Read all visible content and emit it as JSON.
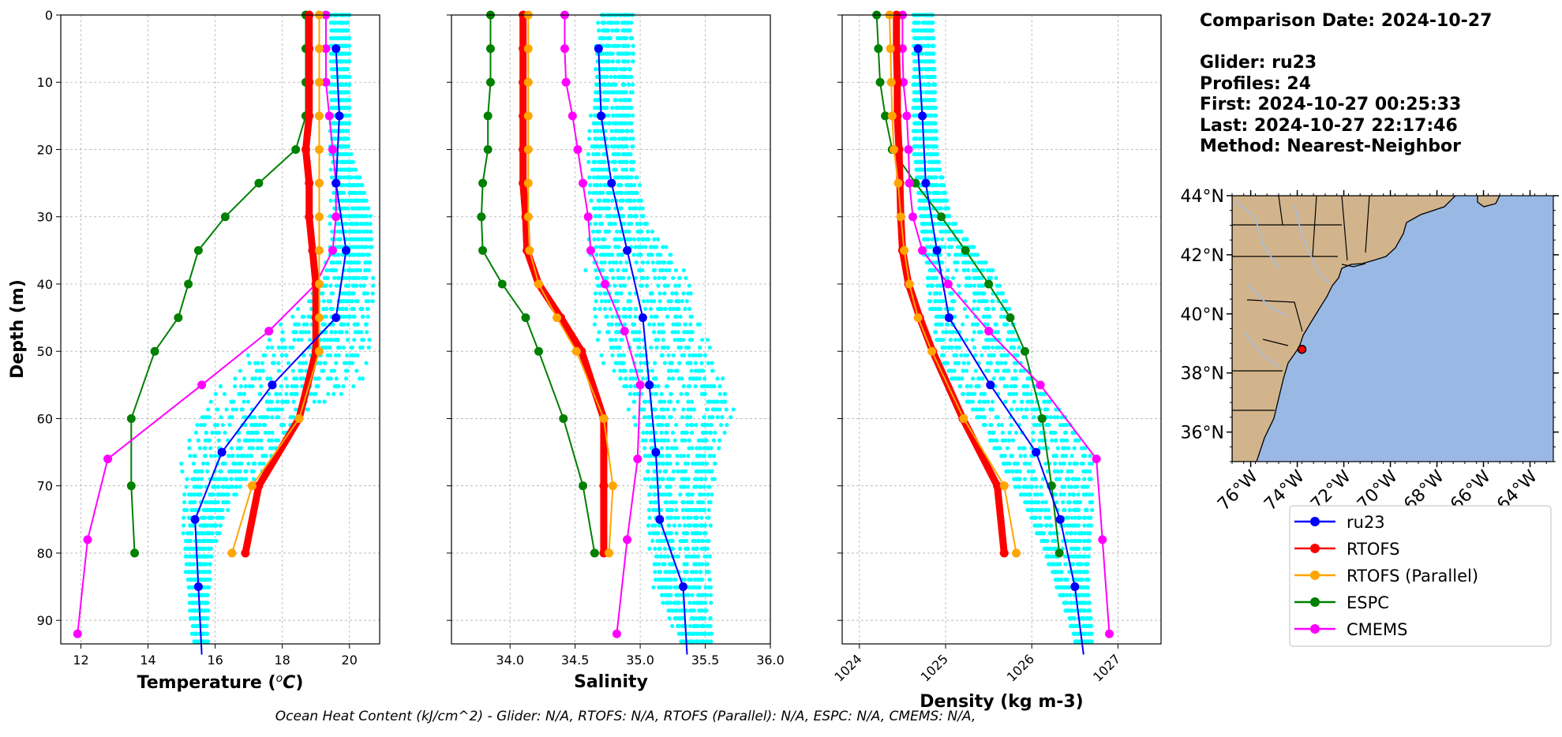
{
  "colors": {
    "ru23": "#0000ff",
    "rtofs": "#ff0000",
    "rtofs_parallel": "#ffa500",
    "espc": "#008000",
    "cmems": "#ff00ff",
    "glider_points": "#00ffff",
    "land": "#d2b48c",
    "ocean": "#99b8e3",
    "rivers": "#a7bde0"
  },
  "info": {
    "date_line": "Comparison Date: 2024-10-27",
    "glider_line": "Glider: ru23",
    "profiles_line": "Profiles: 24",
    "first_line": "First: 2024-10-27 00:25:33",
    "last_line": "Last: 2024-10-27 22:17:46",
    "method_line": "Method: Nearest-Neighbor"
  },
  "footer": "Ocean Heat Content (kJ/cm^2) - Glider: N/A,  RTOFS: N/A,  RTOFS (Parallel): N/A,  ESPC: N/A,  CMEMS: N/A,",
  "legend": [
    "ru23",
    "RTOFS",
    "RTOFS (Parallel)",
    "ESPC",
    "CMEMS"
  ],
  "map": {
    "lat_ticks": [
      "44°N",
      "42°N",
      "40°N",
      "38°N",
      "36°N"
    ],
    "lat_values": [
      44,
      42,
      40,
      38,
      36
    ],
    "lon_ticks": [
      "76°W",
      "74°W",
      "72°W",
      "70°W",
      "68°W",
      "66°W",
      "64°W"
    ],
    "lon_values": [
      -76,
      -74,
      -72,
      -70,
      -68,
      -66,
      -64
    ],
    "extent": {
      "lon": [
        -76.8,
        -63.0
      ],
      "lat": [
        35.0,
        44.0
      ]
    },
    "glider_position": {
      "lon": -73.8,
      "lat": 38.8
    }
  },
  "chart_data": [
    {
      "type": "line",
      "xlabel": "Temperature (°C)",
      "ylabel": "Depth (m)",
      "xlim": [
        11.4,
        20.9
      ],
      "ylim": [
        93.5,
        0
      ],
      "xticks": [
        12,
        14,
        16,
        18,
        20
      ],
      "yticks": [
        0,
        10,
        20,
        30,
        40,
        50,
        60,
        70,
        80,
        90
      ],
      "grid": true,
      "series": [
        {
          "name": "ru23",
          "depth": [
            5,
            15,
            25,
            35,
            45,
            55,
            65,
            75,
            85,
            95
          ],
          "values": [
            19.6,
            19.7,
            19.6,
            19.9,
            19.6,
            17.7,
            16.2,
            15.4,
            15.5,
            15.6
          ]
        },
        {
          "name": "RTOFS",
          "depth": [
            0,
            5,
            10,
            15,
            20,
            25,
            30,
            35,
            40,
            45,
            50,
            60,
            70,
            80
          ],
          "values": [
            18.8,
            18.8,
            18.8,
            18.8,
            18.7,
            18.8,
            18.8,
            18.9,
            19.0,
            19.0,
            19.0,
            18.5,
            17.3,
            16.9
          ]
        },
        {
          "name": "RTOFS (Parallel)",
          "depth": [
            0,
            5,
            10,
            15,
            20,
            25,
            30,
            35,
            40,
            45,
            50,
            60,
            70,
            80
          ],
          "values": [
            19.1,
            19.1,
            19.1,
            19.1,
            19.1,
            19.1,
            19.1,
            19.1,
            19.1,
            19.1,
            19.1,
            18.5,
            17.1,
            16.5
          ]
        },
        {
          "name": "ESPC",
          "depth": [
            0,
            5,
            10,
            15,
            20,
            25,
            30,
            35,
            40,
            45,
            50,
            60,
            70,
            80
          ],
          "values": [
            18.7,
            18.7,
            18.7,
            18.7,
            18.4,
            17.3,
            16.3,
            15.5,
            15.2,
            14.9,
            14.2,
            13.5,
            13.5,
            13.6
          ]
        },
        {
          "name": "CMEMS",
          "depth": [
            0,
            5,
            10,
            15,
            20,
            25,
            30,
            35,
            40,
            47,
            55,
            66,
            78,
            92
          ],
          "values": [
            19.3,
            19.3,
            19.3,
            19.4,
            19.5,
            19.6,
            19.6,
            19.5,
            19.0,
            17.6,
            15.6,
            12.8,
            12.2,
            11.9
          ]
        }
      ],
      "glider_band": [
        [
          0,
          19.4,
          20.0
        ],
        [
          10,
          19.4,
          20.0
        ],
        [
          20,
          19.4,
          20.0
        ],
        [
          28,
          19.4,
          20.6
        ],
        [
          36,
          19.3,
          20.7
        ],
        [
          42,
          18.6,
          20.7
        ],
        [
          48,
          17.5,
          20.6
        ],
        [
          54,
          16.0,
          20.5
        ],
        [
          60,
          15.1,
          18.6
        ],
        [
          66,
          14.9,
          17.8
        ],
        [
          72,
          14.9,
          16.5
        ],
        [
          80,
          15.0,
          15.9
        ],
        [
          88,
          15.2,
          15.8
        ],
        [
          93,
          15.3,
          15.8
        ]
      ]
    },
    {
      "type": "line",
      "xlabel": "Salinity",
      "xlim": [
        33.55,
        36.0
      ],
      "ylim": [
        93.5,
        0
      ],
      "xticks": [
        34.0,
        34.5,
        35.0,
        35.5,
        36.0
      ],
      "grid": true,
      "series": [
        {
          "name": "ru23",
          "depth": [
            5,
            15,
            25,
            35,
            45,
            55,
            65,
            75,
            85,
            95
          ],
          "values": [
            34.68,
            34.7,
            34.78,
            34.9,
            35.02,
            35.07,
            35.12,
            35.15,
            35.33,
            35.36
          ]
        },
        {
          "name": "RTOFS",
          "depth": [
            0,
            5,
            10,
            15,
            20,
            25,
            30,
            35,
            40,
            45,
            50,
            60,
            70,
            80
          ],
          "values": [
            34.1,
            34.1,
            34.1,
            34.1,
            34.1,
            34.1,
            34.12,
            34.13,
            34.22,
            34.39,
            34.55,
            34.72,
            34.72,
            34.72
          ]
        },
        {
          "name": "RTOFS (Parallel)",
          "depth": [
            0,
            5,
            10,
            15,
            20,
            25,
            30,
            35,
            40,
            45,
            50,
            60,
            70,
            80
          ],
          "values": [
            34.14,
            34.14,
            34.14,
            34.14,
            34.14,
            34.14,
            34.14,
            34.15,
            34.22,
            34.36,
            34.51,
            34.72,
            34.79,
            34.76
          ]
        },
        {
          "name": "ESPC",
          "depth": [
            0,
            5,
            10,
            15,
            20,
            25,
            30,
            35,
            40,
            45,
            50,
            60,
            70,
            80
          ],
          "values": [
            33.85,
            33.85,
            33.85,
            33.83,
            33.83,
            33.79,
            33.78,
            33.79,
            33.94,
            34.12,
            34.22,
            34.41,
            34.56,
            34.65
          ]
        },
        {
          "name": "CMEMS",
          "depth": [
            0,
            5,
            10,
            15,
            20,
            25,
            30,
            35,
            40,
            47,
            55,
            66,
            78,
            92
          ],
          "values": [
            34.42,
            34.42,
            34.43,
            34.48,
            34.52,
            34.56,
            34.6,
            34.62,
            34.73,
            34.88,
            35.0,
            34.98,
            34.9,
            34.82
          ]
        }
      ],
      "glider_band": [
        [
          0,
          34.68,
          34.95
        ],
        [
          20,
          34.6,
          34.95
        ],
        [
          30,
          34.62,
          35.05
        ],
        [
          38,
          34.58,
          35.35
        ],
        [
          44,
          34.62,
          35.45
        ],
        [
          52,
          34.72,
          35.6
        ],
        [
          58,
          34.9,
          35.75
        ],
        [
          65,
          35.0,
          35.6
        ],
        [
          75,
          35.05,
          35.55
        ],
        [
          85,
          35.1,
          35.55
        ],
        [
          93,
          35.3,
          35.55
        ]
      ]
    },
    {
      "type": "line",
      "xlabel": "Density (kg m-3)",
      "xlim": [
        1023.8,
        1027.5
      ],
      "ylim": [
        93.5,
        0
      ],
      "xticks": [
        1024,
        1025,
        1026,
        1027
      ],
      "grid": true,
      "series": [
        {
          "name": "ru23",
          "depth": [
            5,
            15,
            25,
            35,
            45,
            55,
            65,
            75,
            85,
            95
          ],
          "values": [
            1024.68,
            1024.73,
            1024.77,
            1024.9,
            1025.04,
            1025.52,
            1026.05,
            1026.33,
            1026.5,
            1026.6
          ]
        },
        {
          "name": "RTOFS",
          "depth": [
            0,
            5,
            10,
            15,
            20,
            25,
            30,
            35,
            40,
            45,
            50,
            60,
            70,
            80
          ],
          "values": [
            1024.43,
            1024.43,
            1024.44,
            1024.44,
            1024.46,
            1024.47,
            1024.48,
            1024.5,
            1024.57,
            1024.7,
            1024.85,
            1025.2,
            1025.6,
            1025.68
          ]
        },
        {
          "name": "RTOFS (Parallel)",
          "depth": [
            0,
            5,
            10,
            15,
            20,
            25,
            30,
            35,
            40,
            45,
            50,
            60,
            70,
            80
          ],
          "values": [
            1024.35,
            1024.36,
            1024.37,
            1024.38,
            1024.4,
            1024.45,
            1024.48,
            1024.52,
            1024.58,
            1024.68,
            1024.84,
            1025.21,
            1025.68,
            1025.82
          ]
        },
        {
          "name": "ESPC",
          "depth": [
            0,
            5,
            10,
            15,
            20,
            25,
            30,
            35,
            40,
            45,
            50,
            60,
            70,
            80
          ],
          "values": [
            1024.2,
            1024.22,
            1024.24,
            1024.3,
            1024.38,
            1024.65,
            1024.95,
            1025.23,
            1025.5,
            1025.75,
            1025.92,
            1026.12,
            1026.23,
            1026.32
          ]
        },
        {
          "name": "CMEMS",
          "depth": [
            0,
            5,
            10,
            15,
            20,
            25,
            30,
            35,
            40,
            47,
            55,
            66,
            78,
            92
          ],
          "values": [
            1024.5,
            1024.5,
            1024.51,
            1024.55,
            1024.57,
            1024.58,
            1024.62,
            1024.73,
            1025.03,
            1025.5,
            1026.1,
            1026.75,
            1026.82,
            1026.9
          ]
        }
      ],
      "glider_band": [
        [
          0,
          1024.62,
          1024.85
        ],
        [
          20,
          1024.62,
          1024.9
        ],
        [
          30,
          1024.7,
          1025.05
        ],
        [
          38,
          1024.75,
          1025.55
        ],
        [
          44,
          1024.8,
          1025.75
        ],
        [
          52,
          1024.95,
          1025.9
        ],
        [
          60,
          1025.3,
          1026.4
        ],
        [
          66,
          1025.6,
          1026.7
        ],
        [
          74,
          1025.95,
          1026.7
        ],
        [
          82,
          1026.2,
          1026.65
        ],
        [
          93,
          1026.5,
          1026.7
        ]
      ]
    }
  ]
}
